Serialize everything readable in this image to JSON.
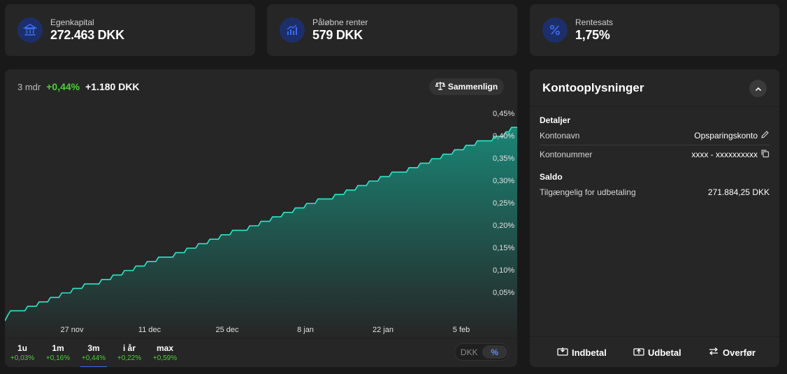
{
  "stats": [
    {
      "label": "Egenkapital",
      "value": "272.463 DKK",
      "icon": "bank-icon"
    },
    {
      "label": "Påløbne renter",
      "value": "579 DKK",
      "icon": "bar-chart-up-icon"
    },
    {
      "label": "Rentesats",
      "value": "1,75%",
      "icon": "percent-icon"
    }
  ],
  "chart": {
    "period_label": "3 mdr",
    "change_pct": "+0,44%",
    "change_abs": "+1.180 DKK",
    "compare_label": "Sammenlign"
  },
  "chart_data": {
    "type": "area",
    "y_unit": "%",
    "x_ticks": [
      "27 nov",
      "11 dec",
      "25 dec",
      "8 jan",
      "22 jan",
      "5 feb"
    ],
    "y_ticks": [
      "0,45%",
      "0,40%",
      "0,35%",
      "0,30%",
      "0,25%",
      "0,20%",
      "0,15%",
      "0,10%",
      "0,05%"
    ],
    "ylim": [
      0.0,
      0.45
    ],
    "series": [
      {
        "values": [
          0.0,
          0.01,
          0.01,
          0.01,
          0.02,
          0.02,
          0.03,
          0.03,
          0.04,
          0.04,
          0.05,
          0.05,
          0.06,
          0.06,
          0.07,
          0.07,
          0.07,
          0.08,
          0.08,
          0.09,
          0.09,
          0.1,
          0.1,
          0.11,
          0.11,
          0.12,
          0.12,
          0.13,
          0.13,
          0.13,
          0.14,
          0.14,
          0.15,
          0.15,
          0.16,
          0.16,
          0.17,
          0.17,
          0.18,
          0.18,
          0.19,
          0.19,
          0.19,
          0.2,
          0.2,
          0.21,
          0.21,
          0.22,
          0.22,
          0.23,
          0.23,
          0.24,
          0.24,
          0.25,
          0.25,
          0.26,
          0.26,
          0.26,
          0.27,
          0.27,
          0.28,
          0.28,
          0.29,
          0.29,
          0.3,
          0.3,
          0.31,
          0.31,
          0.32,
          0.32,
          0.32,
          0.33,
          0.33,
          0.34,
          0.34,
          0.35,
          0.35,
          0.36,
          0.36,
          0.37,
          0.37,
          0.38,
          0.38,
          0.39,
          0.39,
          0.39,
          0.4,
          0.4,
          0.41,
          0.42,
          0.42
        ]
      }
    ],
    "line_color": "#2ee6c8"
  },
  "ranges": [
    {
      "label": "1u",
      "pct": "+0,03%",
      "active": false
    },
    {
      "label": "1m",
      "pct": "+0,16%",
      "active": false
    },
    {
      "label": "3m",
      "pct": "+0,44%",
      "active": true
    },
    {
      "label": "i år",
      "pct": "+0,22%",
      "active": false
    },
    {
      "label": "max",
      "pct": "+0,59%",
      "active": false
    }
  ],
  "toggle": {
    "dkk": "DKK",
    "pct": "%"
  },
  "info": {
    "title": "Kontooplysninger",
    "details_title": "Detaljer",
    "account_name_label": "Kontonavn",
    "account_name_value": "Opsparingskonto",
    "account_number_label": "Kontonummer",
    "account_number_value": "xxxx - xxxxxxxxxx",
    "balance_title": "Saldo",
    "available_label": "Tilgængelig for udbetaling",
    "available_value": "271.884,25 DKK"
  },
  "actions": [
    {
      "label": "Indbetal",
      "icon": "deposit-icon"
    },
    {
      "label": "Udbetal",
      "icon": "withdraw-icon"
    },
    {
      "label": "Overfør",
      "icon": "transfer-icon"
    }
  ],
  "colors": {
    "accent": "#3c6cf0",
    "positive": "#4cd137",
    "line": "#2ee6c8"
  }
}
